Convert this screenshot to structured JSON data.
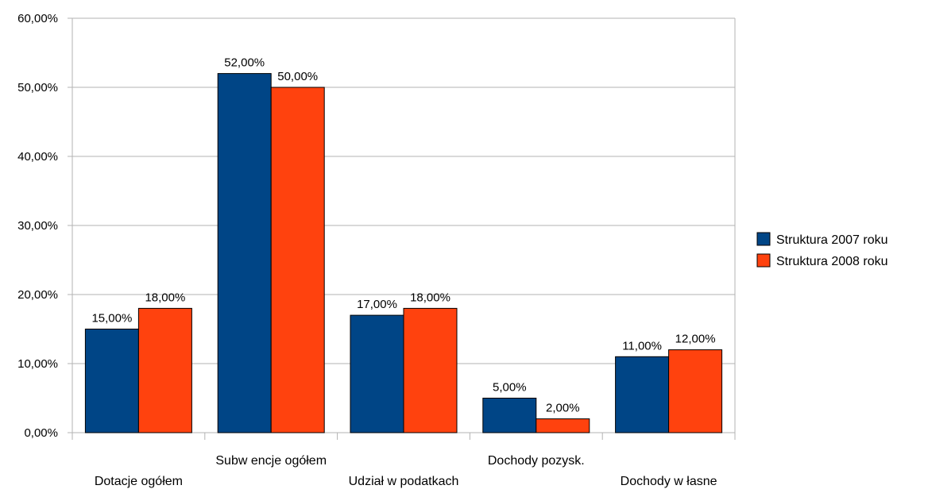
{
  "chart_data": {
    "type": "bar",
    "title": "",
    "xlabel": "",
    "ylabel": "",
    "categories": [
      "Dotacje ogółem",
      "Subw encje ogółem",
      "Udział w  podatkach",
      "Dochody pozysk.",
      "Dochody w łasne"
    ],
    "series": [
      {
        "name": "Struktura 2007 roku",
        "color": "#004586",
        "values": [
          15,
          52,
          17,
          5,
          11
        ],
        "value_labels": [
          "15,00%",
          "52,00%",
          "17,00%",
          "5,00%",
          "11,00%"
        ]
      },
      {
        "name": "Struktura 2008 roku",
        "color": "#ff420e",
        "values": [
          18,
          50,
          18,
          2,
          12
        ],
        "value_labels": [
          "18,00%",
          "50,00%",
          "18,00%",
          "2,00%",
          "12,00%"
        ]
      }
    ],
    "ylim": [
      0,
      60
    ],
    "yticks": [
      0,
      10,
      20,
      30,
      40,
      50,
      60
    ],
    "ytick_labels": [
      "0,00%",
      "10,00%",
      "20,00%",
      "30,00%",
      "40,00%",
      "50,00%",
      "60,00%"
    ],
    "grid": true,
    "legend_position": "right"
  }
}
